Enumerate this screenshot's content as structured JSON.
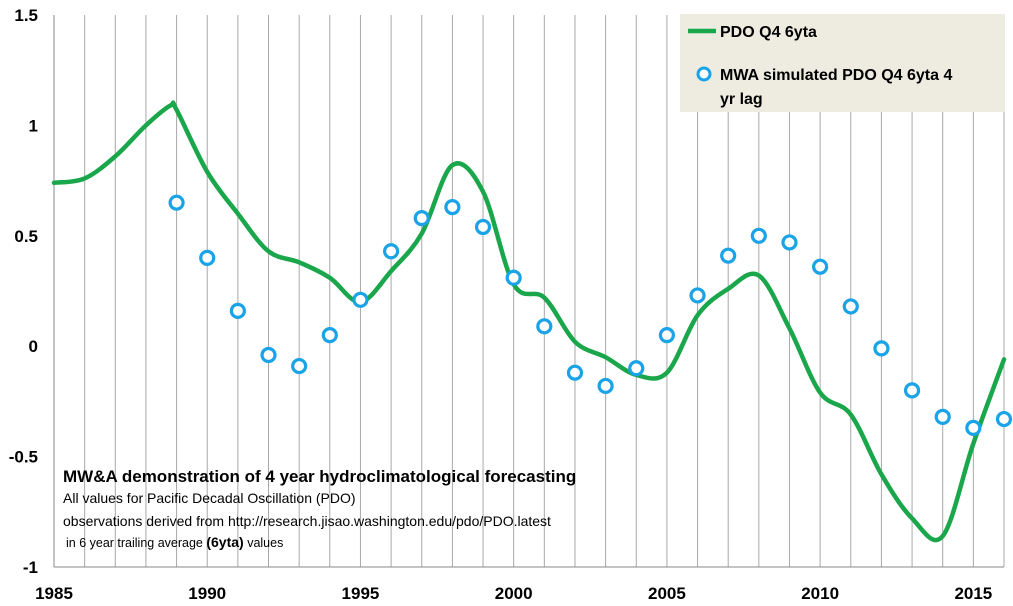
{
  "chart_data": {
    "type": "line",
    "xlim": [
      1985,
      2016
    ],
    "ylim": [
      -1,
      1.5
    ],
    "x_ticks": [
      "1985",
      "1990",
      "1995",
      "2000",
      "2005",
      "2010",
      "2015"
    ],
    "y_ticks": [
      "1.5",
      "1",
      "0.5",
      "0",
      "-0.5",
      "-1"
    ],
    "grid": "vertical lines at every year",
    "legend_position": "top-right",
    "series": [
      {
        "name": "PDO Q4 6yta",
        "style": "line",
        "color": "#1aa64a",
        "x": [
          1985,
          1986,
          1987,
          1988,
          1988.8,
          1989,
          1990,
          1991,
          1992,
          1993,
          1994,
          1995,
          1996,
          1997,
          1998,
          1999,
          2000,
          2001,
          2002,
          2003,
          2004,
          2005,
          2006,
          2007,
          2008,
          2009,
          2010,
          2011,
          2012,
          2013,
          2014,
          2015,
          2016
        ],
        "y": [
          0.74,
          0.76,
          0.86,
          1.0,
          1.09,
          1.07,
          0.79,
          0.6,
          0.43,
          0.38,
          0.31,
          0.2,
          0.34,
          0.51,
          0.82,
          0.7,
          0.28,
          0.22,
          0.02,
          -0.05,
          -0.13,
          -0.12,
          0.14,
          0.26,
          0.32,
          0.08,
          -0.21,
          -0.31,
          -0.58,
          -0.78,
          -0.86,
          -0.44,
          -0.06
        ]
      },
      {
        "name": "MWA simulated PDO Q4 6yta 4 yr lag",
        "style": "markers",
        "color": "#1aa3e6",
        "x": [
          1989,
          1990,
          1991,
          1992,
          1993,
          1994,
          1995,
          1996,
          1997,
          1998,
          1999,
          2000,
          2001,
          2002,
          2003,
          2004,
          2005,
          2006,
          2007,
          2008,
          2009,
          2010,
          2011,
          2012,
          2013,
          2014,
          2015,
          2016
        ],
        "y": [
          0.65,
          0.4,
          0.16,
          -0.04,
          -0.09,
          0.05,
          0.21,
          0.43,
          0.58,
          0.63,
          0.54,
          0.31,
          0.09,
          -0.12,
          -0.18,
          -0.1,
          0.05,
          0.23,
          0.41,
          0.5,
          0.47,
          0.36,
          0.18,
          -0.01,
          -0.2,
          -0.32,
          -0.37,
          -0.33
        ]
      }
    ],
    "legend": {
      "line_label": "PDO Q4 6yta",
      "marker_label_line1": "MWA simulated PDO Q4 6yta 4",
      "marker_label_line2": "yr lag"
    },
    "annotation": {
      "title": "MW&A demonstration of  4 year hydroclimatological forecasting",
      "line1": "All values for  Pacific Decadal Oscillation (PDO)",
      "line2": "observations derived from http://research.jisao.washington.edu/pdo/PDO.latest",
      "line3_prefix": "in 6 year trailing average ",
      "line3_bold": "(6yta)",
      "line3_suffix": " values"
    }
  }
}
